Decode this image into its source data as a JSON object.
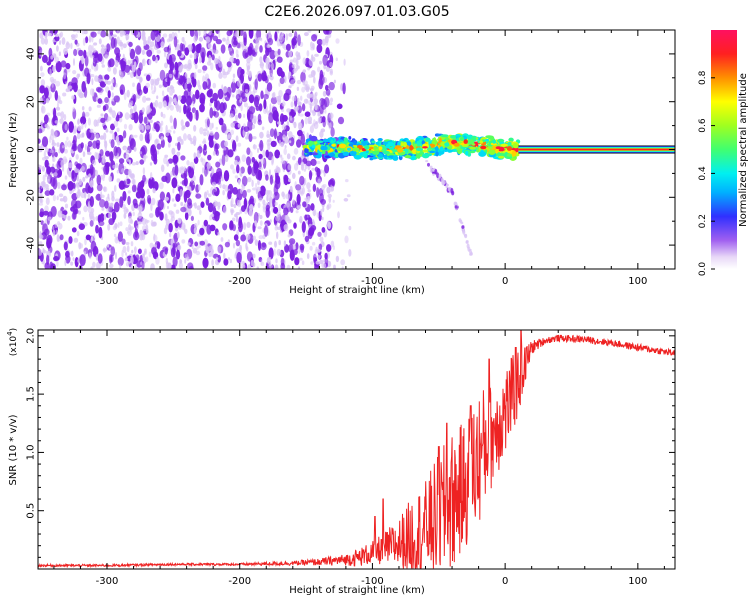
{
  "figure_title": "C2E6.2026.097.01.03.G05",
  "colors": {
    "snr_line": "#ee2222",
    "waterfall_noise": "#7a1ee0",
    "waterfall_light": "#d9c4f5",
    "axis": "#000000"
  },
  "chart_data": [
    {
      "type": "heatmap",
      "id": "spectrogram",
      "xlabel": "Height of straight line (km)",
      "ylabel": "Frequency (Hz)",
      "xlim": [
        -352,
        128
      ],
      "ylim": [
        -50,
        50
      ],
      "x_ticks": [
        -300,
        -200,
        -100,
        0,
        100
      ],
      "y_ticks": [
        -40,
        -20,
        0,
        20,
        40
      ],
      "colorbar": {
        "label": "Normalized spectral amplitude",
        "range": [
          0,
          1
        ],
        "ticks": [
          0.0,
          0.2,
          0.4,
          0.6,
          0.8
        ],
        "tick_labels": [
          "0.0",
          "0.2",
          "0.4",
          "0.6",
          "0.8"
        ]
      },
      "regions": [
        {
          "name": "noise",
          "x_range": [
            -352,
            -130
          ],
          "freq_range": [
            -50,
            50
          ],
          "amplitude": 0.1
        },
        {
          "name": "transition",
          "x_range": [
            -150,
            10
          ],
          "freq_range": [
            -5,
            8
          ],
          "amplitude": 0.5
        },
        {
          "name": "tone",
          "x_range": [
            10,
            128
          ],
          "freq_center": 0,
          "amplitude": 1.0
        }
      ],
      "features": [
        {
          "name": "tone-ridge",
          "points": [
            [
              -148,
              1
            ],
            [
              -120,
              1
            ],
            [
              -100,
              0
            ],
            [
              -80,
              0
            ],
            [
              -60,
              1
            ],
            [
              -40,
              3
            ],
            [
              -20,
              2
            ],
            [
              0,
              0
            ],
            [
              10,
              0
            ]
          ],
          "amplitude_range": [
            0.3,
            1.0
          ]
        },
        {
          "name": "faint-drift",
          "points": [
            [
              -60,
              -5
            ],
            [
              -40,
              -18
            ],
            [
              -25,
              -45
            ]
          ],
          "amplitude": 0.12
        }
      ]
    },
    {
      "type": "line",
      "id": "snr",
      "xlabel": "Height of straight line (km)",
      "ylabel": "SNR (10 * v/v)",
      "y_multiplier_label": "(x10",
      "y_multiplier_exponent": "4",
      "y_multiplier_suffix": ")",
      "xlim": [
        -352,
        128
      ],
      "ylim": [
        0,
        2.05
      ],
      "x_ticks": [
        -300,
        -200,
        -100,
        0,
        100
      ],
      "y_ticks": [
        0.5,
        1.0,
        1.5,
        2.0
      ],
      "y_tick_labels": [
        "0.5",
        "1.0",
        "1.5",
        "2.0"
      ],
      "series": [
        {
          "name": "SNR",
          "x": [
            -352,
            -300,
            -250,
            -200,
            -160,
            -140,
            -120,
            -110,
            -100,
            -90,
            -80,
            -70,
            -60,
            -50,
            -40,
            -30,
            -20,
            -10,
            0,
            10,
            20,
            30,
            40,
            60,
            80,
            100,
            128
          ],
          "base": [
            0.03,
            0.03,
            0.04,
            0.04,
            0.05,
            0.06,
            0.08,
            0.1,
            0.14,
            0.18,
            0.22,
            0.28,
            0.36,
            0.45,
            0.58,
            0.72,
            0.95,
            1.15,
            1.35,
            1.6,
            1.9,
            1.96,
            1.98,
            1.97,
            1.94,
            1.9,
            1.85
          ],
          "spread": [
            0.01,
            0.01,
            0.01,
            0.01,
            0.02,
            0.03,
            0.05,
            0.08,
            0.1,
            0.15,
            0.22,
            0.35,
            0.4,
            0.55,
            0.6,
            0.55,
            0.6,
            0.45,
            0.4,
            0.3,
            0.06,
            0.03,
            0.03,
            0.03,
            0.03,
            0.03,
            0.03
          ],
          "peaks": [
            [
              -98,
              0.45
            ],
            [
              -92,
              0.6
            ],
            [
              -50,
              1.05
            ],
            [
              -44,
              1.25
            ],
            [
              -26,
              1.4
            ],
            [
              -12,
              1.8
            ],
            [
              8,
              1.9
            ],
            [
              12,
              2.05
            ]
          ]
        }
      ]
    }
  ]
}
